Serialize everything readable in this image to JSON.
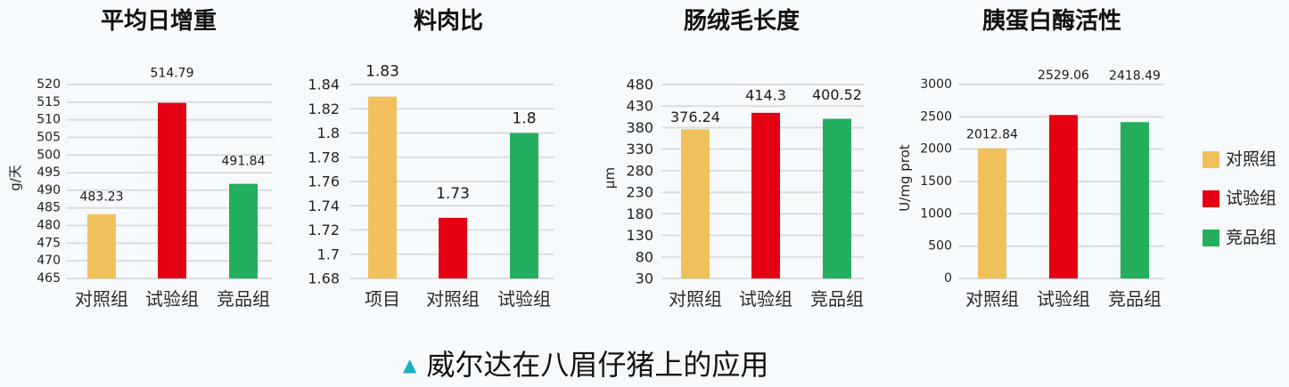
{
  "page": {
    "background": "#F7FAFD"
  },
  "colors": {
    "grid": "#DCDCDC",
    "accent": "#1AB1C3"
  },
  "chart_data": [
    {
      "type": "bar",
      "title": "平均日增重",
      "ylabel": "g/天",
      "categories": [
        "对照组",
        "试验组",
        "竞品组"
      ],
      "values": [
        483.23,
        514.79,
        491.84
      ],
      "colors": [
        "#F0C15B",
        "#E50013",
        "#23AF5D"
      ],
      "ylim": [
        465,
        520
      ],
      "yticks": [
        465,
        470,
        475,
        480,
        485,
        490,
        495,
        500,
        505,
        510,
        515,
        520
      ],
      "grid": true
    },
    {
      "type": "bar",
      "title": "料肉比",
      "categories": [
        "项目",
        "对照组",
        "试验组"
      ],
      "values": [
        1.83,
        1.73,
        1.8
      ],
      "colors": [
        "#F0C15B",
        "#E50013",
        "#23AF5D"
      ],
      "ylim": [
        1.68,
        1.84
      ],
      "yticks": [
        1.68,
        1.7,
        1.72,
        1.74,
        1.76,
        1.78,
        1.8,
        1.82,
        1.84
      ],
      "grid": true
    },
    {
      "type": "bar",
      "title": "肠绒毛长度",
      "ylabel": "μm",
      "categories": [
        "对照组",
        "试验组",
        "竞品组"
      ],
      "values": [
        376.24,
        414.3,
        400.52
      ],
      "colors": [
        "#F0C15B",
        "#E50013",
        "#23AF5D"
      ],
      "ylim": [
        30,
        480
      ],
      "yticks": [
        30,
        80,
        130,
        180,
        230,
        280,
        330,
        380,
        430,
        480
      ],
      "grid": true
    },
    {
      "type": "bar",
      "title": "胰蛋白酶活性",
      "ylabel": "U/mg prot",
      "categories": [
        "对照组",
        "试验组",
        "竞品组"
      ],
      "values": [
        2012.84,
        2529.06,
        2418.49
      ],
      "colors": [
        "#F0C15B",
        "#E50013",
        "#23AF5D"
      ],
      "ylim": [
        0,
        3000
      ],
      "yticks": [
        0,
        500,
        1000,
        1500,
        2000,
        2500,
        3000
      ],
      "grid": true
    }
  ],
  "legend": {
    "placement": "right",
    "items": [
      {
        "label": "对照组",
        "color": "#F0C15B"
      },
      {
        "label": "试验组",
        "color": "#E50013"
      },
      {
        "label": "竞品组",
        "color": "#23AF5D"
      }
    ]
  },
  "caption": {
    "marker": "▲",
    "text": "威尔达在八眉仔猪上的应用"
  }
}
